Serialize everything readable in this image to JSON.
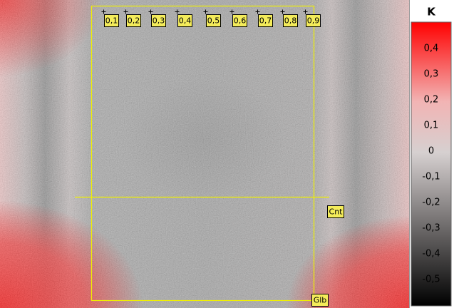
{
  "colorbar": {
    "title": "K",
    "ticks": [
      "0,4",
      "0,3",
      "0,2",
      "0,1",
      "0",
      "-0,1",
      "-0,2",
      "-0,3",
      "-0,4",
      "-0,5"
    ]
  },
  "markers": {
    "top": [
      "0,1",
      "0,2",
      "0,3",
      "0,4",
      "0,5",
      "0,6",
      "0,7",
      "0,8",
      "0,9"
    ],
    "center": "Cnt",
    "global": "Glb"
  }
}
